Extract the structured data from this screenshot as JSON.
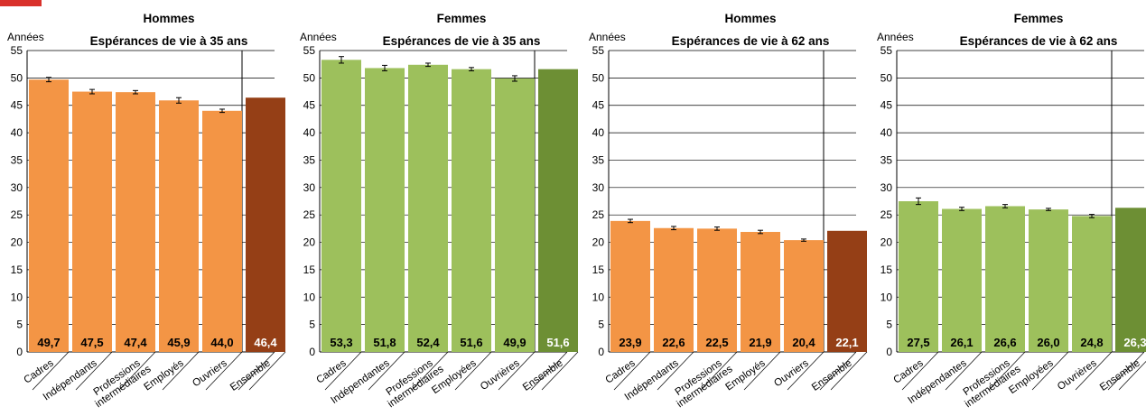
{
  "unit_label": "Années",
  "colors": {
    "hommes_bar": "#f39545",
    "hommes_total": "#953f16",
    "femmes_bar": "#9dc05c",
    "femmes_total": "#6d8f34",
    "grid": "#000000",
    "header_accent": "#d9312b"
  },
  "chart_data": [
    {
      "type": "bar",
      "title_line1": "Hommes",
      "title_line2": "Espérances de vie à 35 ans",
      "ylabel": "Années",
      "ylim": [
        0,
        55
      ],
      "yticks": [
        0,
        5,
        10,
        15,
        20,
        25,
        30,
        35,
        40,
        45,
        50,
        55
      ],
      "categories": [
        "Cadres",
        "Indépendants",
        "Professions intermédiaires",
        "Employés",
        "Ouvriers",
        "Ensemble"
      ],
      "values": [
        49.7,
        47.5,
        47.4,
        45.9,
        44.0,
        46.4
      ],
      "value_labels": [
        "49,7",
        "47,5",
        "47,4",
        "45,9",
        "44,0",
        "46,4"
      ],
      "error_margin": [
        0.4,
        0.4,
        0.3,
        0.5,
        0.3,
        0.1
      ],
      "palette": "hommes"
    },
    {
      "type": "bar",
      "title_line1": "Femmes",
      "title_line2": "Espérances de vie à 35 ans",
      "ylabel": "Années",
      "ylim": [
        0,
        55
      ],
      "yticks": [
        0,
        5,
        10,
        15,
        20,
        25,
        30,
        35,
        40,
        45,
        50,
        55
      ],
      "categories": [
        "Cadres",
        "Indépendantes",
        "Professions intermédiaires",
        "Employées",
        "Ouvrières",
        "Ensemble"
      ],
      "values": [
        53.3,
        51.8,
        52.4,
        51.6,
        49.9,
        51.6
      ],
      "value_labels": [
        "53,3",
        "51,8",
        "52,4",
        "51,6",
        "49,9",
        "51,6"
      ],
      "error_margin": [
        0.6,
        0.5,
        0.3,
        0.3,
        0.5,
        0.1
      ],
      "palette": "femmes"
    },
    {
      "type": "bar",
      "title_line1": "Hommes",
      "title_line2": "Espérances de vie à 62 ans",
      "ylabel": "Années",
      "ylim": [
        0,
        55
      ],
      "yticks": [
        0,
        5,
        10,
        15,
        20,
        25,
        30,
        35,
        40,
        45,
        50,
        55
      ],
      "categories": [
        "Cadres",
        "Indépendants",
        "Professions intermédiaires",
        "Employés",
        "Ouvriers",
        "Ensemble"
      ],
      "values": [
        23.9,
        22.6,
        22.5,
        21.9,
        20.4,
        22.1
      ],
      "value_labels": [
        "23,9",
        "22,6",
        "22,5",
        "21,9",
        "20,4",
        "22,1"
      ],
      "error_margin": [
        0.3,
        0.3,
        0.3,
        0.3,
        0.2,
        0.1
      ],
      "palette": "hommes"
    },
    {
      "type": "bar",
      "title_line1": "Femmes",
      "title_line2": "Espérances de vie à 62 ans",
      "ylabel": "Années",
      "ylim": [
        0,
        55
      ],
      "yticks": [
        0,
        5,
        10,
        15,
        20,
        25,
        30,
        35,
        40,
        45,
        50,
        55
      ],
      "categories": [
        "Cadres",
        "Indépendantes",
        "Professions intermédiaires",
        "Employées",
        "Ouvrières",
        "Ensemble"
      ],
      "values": [
        27.5,
        26.1,
        26.6,
        26.0,
        24.8,
        26.3
      ],
      "value_labels": [
        "27,5",
        "26,1",
        "26,6",
        "26,0",
        "24,8",
        "26,3"
      ],
      "error_margin": [
        0.6,
        0.3,
        0.3,
        0.2,
        0.3,
        0.1
      ],
      "palette": "femmes"
    }
  ]
}
